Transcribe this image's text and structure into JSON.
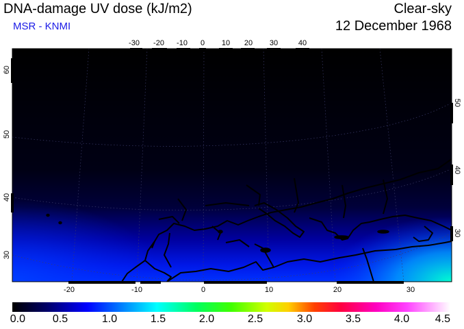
{
  "header": {
    "title": "DNA-damage UV dose (kJ/m2)",
    "source": "MSR - KNMI",
    "condition": "Clear-sky",
    "date": "12 December 1968"
  },
  "map": {
    "top_lon_labels": [
      "-30",
      "-20",
      "-10",
      "0",
      "10",
      "20",
      "30",
      "40"
    ],
    "bottom_lon_labels": [
      "-20",
      "-10",
      "0",
      "10",
      "20",
      "30"
    ],
    "left_lat_labels": [
      "60",
      "50",
      "40",
      "30"
    ],
    "right_lat_labels": [
      "50",
      "40",
      "30"
    ]
  },
  "colorbar": {
    "labels": [
      "0.0",
      "0.5",
      "1.0",
      "1.5",
      "2.0",
      "2.5",
      "3.0",
      "3.5",
      "4.0",
      "4.5"
    ],
    "min": 0.0,
    "max": 4.5,
    "unit": "kJ/m2"
  },
  "colors": {
    "background": "#000000",
    "low_dose": "#0000ff",
    "mid_dose": "#00ffff",
    "source_text": "#1a1ae6"
  }
}
